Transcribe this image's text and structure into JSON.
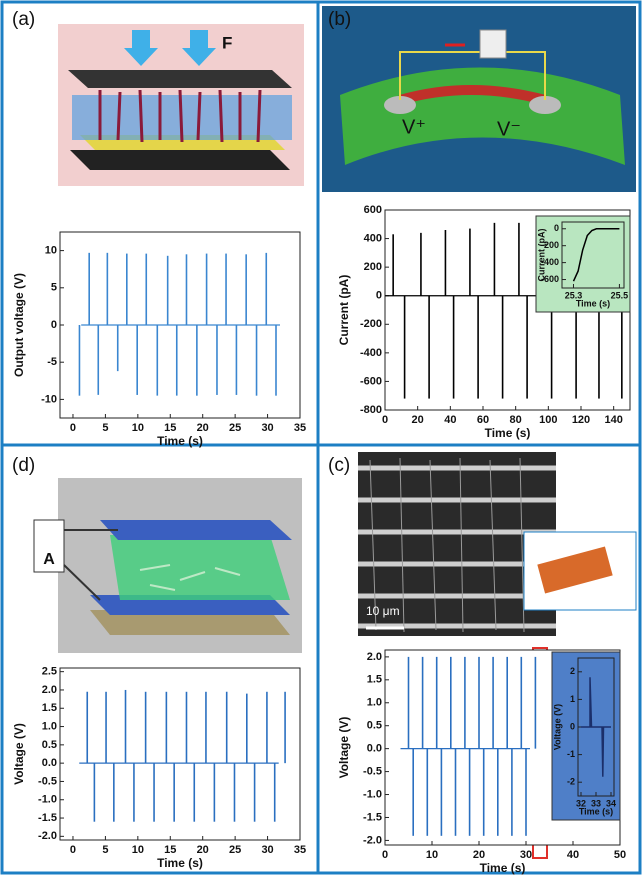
{
  "panels": [
    {
      "label": "(a)",
      "annotation": "F"
    },
    {
      "label": "(b)",
      "annotations": [
        "V⁺",
        "V⁻"
      ]
    },
    {
      "label": "(d)",
      "annotation": "A"
    },
    {
      "label": "(c)",
      "annotation": "10 μm"
    }
  ],
  "chart_data": [
    {
      "type": "spike",
      "xlabel": "Time (s)",
      "ylabel": "Output voltage (V)",
      "xlim": [
        -2,
        35
      ],
      "xticks": [
        0,
        5,
        10,
        15,
        20,
        25,
        30,
        35
      ],
      "ylim": [
        -12.5,
        12.5
      ],
      "yticks": [
        -10,
        -5,
        0,
        5,
        10
      ],
      "series": [
        {
          "color": "#3a86d0",
          "x": [
            2.5,
            5.3,
            8.3,
            11.3,
            14.6,
            17.5,
            20.6,
            23.6,
            26.7,
            29.8
          ],
          "values": [
            9.7,
            9.7,
            9.6,
            9.6,
            9.3,
            9.5,
            9.6,
            9.6,
            9.5,
            9.7
          ]
        },
        {
          "color": "#3a86d0",
          "x": [
            1.0,
            3.9,
            6.9,
            9.9,
            13.0,
            16.0,
            19.1,
            22.2,
            25.2,
            28.3,
            31.3
          ],
          "values": [
            -9.5,
            -9.4,
            -6.2,
            -9.4,
            -9.5,
            -9.5,
            -9.5,
            -9.4,
            -9.4,
            -9.5,
            -9.5
          ]
        }
      ]
    },
    {
      "type": "spike",
      "xlabel": "Time (s)",
      "ylabel": "Current (pA)",
      "xlim": [
        0,
        150
      ],
      "xticks": [
        0,
        20,
        40,
        60,
        80,
        100,
        120,
        140
      ],
      "ylim": [
        -800,
        600
      ],
      "yticks": [
        -800,
        -600,
        -400,
        -200,
        0,
        200,
        400,
        600
      ],
      "series": [
        {
          "color": "#000000",
          "x": [
            5,
            22,
            37,
            52,
            67,
            82,
            97
          ],
          "values": [
            430,
            440,
            460,
            470,
            510,
            510,
            500
          ]
        },
        {
          "color": "#000000",
          "x": [
            12,
            27,
            42,
            57,
            72,
            87,
            102,
            117,
            131,
            145
          ],
          "values": [
            -720,
            -720,
            -720,
            -720,
            -720,
            -720,
            -720,
            -720,
            -720,
            -720
          ]
        }
      ]
    },
    {
      "type": "line",
      "xlabel": "Time (s)",
      "ylabel": "Current (pA)",
      "xlim": [
        25.25,
        25.52
      ],
      "xticks": [
        25.3,
        25.5
      ],
      "ylim": [
        -700,
        80
      ],
      "yticks": [
        -600,
        -400,
        -200,
        0
      ],
      "series": [
        {
          "color": "#000000",
          "x": [
            25.3,
            25.32,
            25.34,
            25.36,
            25.38,
            25.4,
            25.45,
            25.5
          ],
          "values": [
            -620,
            -500,
            -250,
            -80,
            -20,
            0,
            0,
            0
          ]
        }
      ]
    },
    {
      "type": "spike",
      "xlabel": "Time (s)",
      "ylabel": "Voltage (V)",
      "xlim": [
        -2,
        35
      ],
      "xticks": [
        0,
        5,
        10,
        15,
        20,
        25,
        30,
        35
      ],
      "ylim": [
        -2.1,
        2.6
      ],
      "yticks": [
        {
          "value": -2,
          "label": "-2.0"
        },
        -1.5,
        {
          "value": -1,
          "label": "-1.0"
        },
        -0.5,
        {
          "value": 0,
          "label": "0.0"
        },
        0.5,
        {
          "value": 1,
          "label": "1.0"
        },
        1.5,
        {
          "value": 2,
          "label": "2.0"
        },
        2.5
      ],
      "series": [
        {
          "color": "#2a6fc0",
          "x": [
            2.2,
            5.1,
            8.1,
            11.2,
            14.4,
            17.5,
            20.5,
            23.7,
            26.8,
            29.9,
            32.7
          ],
          "values": [
            1.95,
            1.95,
            2.0,
            1.95,
            1.95,
            1.95,
            1.95,
            1.95,
            1.9,
            1.95,
            1.95
          ]
        },
        {
          "color": "#2a6fc0",
          "x": [
            3.3,
            6.3,
            9.4,
            12.5,
            15.6,
            18.7,
            21.8,
            24.9,
            28.0,
            31.1
          ],
          "values": [
            -1.6,
            -1.6,
            -1.6,
            -1.6,
            -1.6,
            -1.6,
            -1.6,
            -1.6,
            -1.6,
            -1.6
          ]
        }
      ]
    },
    {
      "type": "spike",
      "xlabel": "Time (s)",
      "ylabel": "Voltage (V)",
      "xlim": [
        0,
        50
      ],
      "xticks": [
        0,
        10,
        20,
        30,
        40,
        50
      ],
      "ylim": [
        -2.1,
        2.15
      ],
      "yticks": [
        {
          "value": -2,
          "label": "-2.0"
        },
        -1.5,
        {
          "value": -1,
          "label": "-1.0"
        },
        -0.5,
        {
          "value": 0,
          "label": "0.0"
        },
        0.5,
        {
          "value": 1,
          "label": "1.0"
        },
        1.5,
        {
          "value": 2,
          "label": "2.0"
        }
      ],
      "series": [
        {
          "color": "#2a6fc0",
          "x": [
            5,
            8,
            11,
            14,
            17,
            20,
            23,
            26,
            29,
            32
          ],
          "values": [
            2.0,
            2.0,
            2.0,
            2.0,
            2.0,
            2.0,
            2.0,
            2.0,
            2.0,
            2.0
          ]
        },
        {
          "color": "#2a6fc0",
          "x": [
            6,
            9,
            12,
            15,
            18,
            21,
            24,
            27,
            30
          ],
          "values": [
            -1.9,
            -1.9,
            -1.9,
            -1.9,
            -1.9,
            -1.9,
            -1.9,
            -1.9,
            -1.9
          ]
        }
      ]
    },
    {
      "type": "line",
      "xlabel": "Time (s)",
      "ylabel": "Voltage (V)",
      "xlim": [
        31.8,
        34.2
      ],
      "xticks": [
        32,
        33,
        34
      ],
      "ylim": [
        -2.5,
        2.5
      ],
      "yticks": [
        -2,
        -1,
        0,
        1,
        2
      ],
      "series": [
        {
          "color": "#1b2f6a",
          "x": [
            32,
            32.6,
            32.6,
            32.7,
            33.4,
            33.45,
            33.5,
            34
          ],
          "values": [
            0,
            0,
            1.8,
            0,
            0,
            -1.8,
            0,
            0
          ]
        }
      ]
    }
  ]
}
